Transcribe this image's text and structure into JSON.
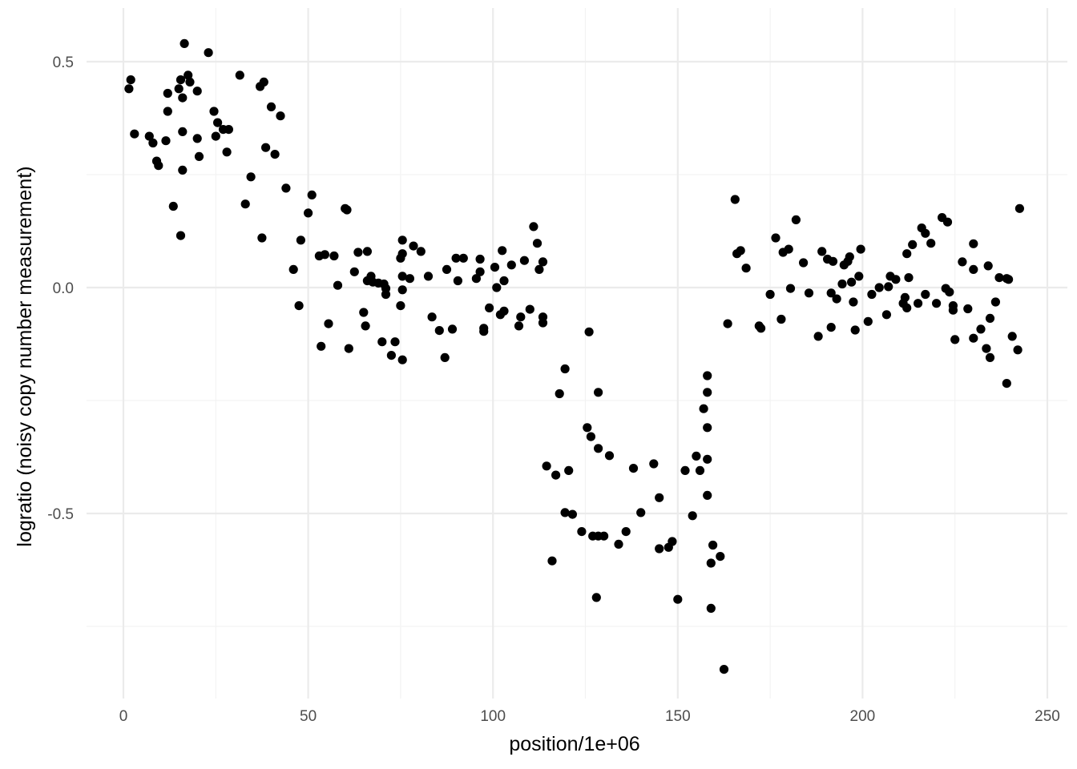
{
  "chart_data": {
    "type": "scatter",
    "title": "",
    "xlabel": "position/1e+06",
    "ylabel": "logratio (noisy copy number measurement)",
    "xlim": [
      -10,
      255
    ],
    "ylim": [
      -0.91,
      0.61
    ],
    "x_ticks": [
      0,
      50,
      100,
      150,
      200,
      250
    ],
    "x_tick_labels": [
      "0",
      "50",
      "100",
      "150",
      "200",
      "250"
    ],
    "y_ticks": [
      0.5,
      0.0,
      -0.5
    ],
    "y_tick_labels": [
      "0.5",
      "0.0",
      "-0.5"
    ],
    "grid": true,
    "legend": "none",
    "point_color": "#000000",
    "points": [
      [
        1.5,
        0.44
      ],
      [
        2.0,
        0.46
      ],
      [
        3.0,
        0.34
      ],
      [
        7.0,
        0.335
      ],
      [
        8.0,
        0.32
      ],
      [
        9.0,
        0.28
      ],
      [
        9.5,
        0.27
      ],
      [
        11.5,
        0.325
      ],
      [
        12.0,
        0.39
      ],
      [
        12.0,
        0.43
      ],
      [
        13.5,
        0.18
      ],
      [
        15.0,
        0.44
      ],
      [
        15.5,
        0.115
      ],
      [
        15.5,
        0.46
      ],
      [
        16.0,
        0.42
      ],
      [
        16.0,
        0.345
      ],
      [
        16.0,
        0.26
      ],
      [
        16.5,
        0.54
      ],
      [
        17.5,
        0.47
      ],
      [
        18.0,
        0.455
      ],
      [
        20.0,
        0.33
      ],
      [
        20.0,
        0.435
      ],
      [
        20.5,
        0.29
      ],
      [
        23.0,
        0.52
      ],
      [
        24.5,
        0.39
      ],
      [
        25.0,
        0.335
      ],
      [
        25.5,
        0.365
      ],
      [
        27.0,
        0.35
      ],
      [
        28.0,
        0.3
      ],
      [
        28.5,
        0.35
      ],
      [
        31.5,
        0.47
      ],
      [
        33.0,
        0.185
      ],
      [
        34.5,
        0.245
      ],
      [
        37.0,
        0.445
      ],
      [
        37.5,
        0.11
      ],
      [
        38.0,
        0.455
      ],
      [
        38.5,
        0.31
      ],
      [
        40.0,
        0.4
      ],
      [
        41.0,
        0.295
      ],
      [
        42.5,
        0.38
      ],
      [
        44.0,
        0.22
      ],
      [
        46.0,
        0.04
      ],
      [
        47.5,
        -0.04
      ],
      [
        48.0,
        0.105
      ],
      [
        50.0,
        0.165
      ],
      [
        51.0,
        0.205
      ],
      [
        53.0,
        0.07
      ],
      [
        53.5,
        -0.13
      ],
      [
        54.5,
        0.073
      ],
      [
        55.5,
        -0.08
      ],
      [
        57.0,
        0.07
      ],
      [
        58.0,
        0.005
      ],
      [
        60.0,
        0.175
      ],
      [
        60.5,
        0.172
      ],
      [
        61.0,
        -0.135
      ],
      [
        62.5,
        0.035
      ],
      [
        63.5,
        0.078
      ],
      [
        65.0,
        -0.055
      ],
      [
        65.5,
        -0.085
      ],
      [
        66.0,
        0.015
      ],
      [
        66.0,
        0.08
      ],
      [
        67.0,
        0.025
      ],
      [
        67.5,
        0.012
      ],
      [
        69.0,
        0.01
      ],
      [
        70.0,
        -0.12
      ],
      [
        70.5,
        0.008
      ],
      [
        71.0,
        -0.015
      ],
      [
        71.0,
        -0.002
      ],
      [
        72.5,
        -0.15
      ],
      [
        73.5,
        -0.12
      ],
      [
        75.0,
        -0.04
      ],
      [
        75.0,
        0.065
      ],
      [
        75.5,
        0.105
      ],
      [
        75.5,
        0.075
      ],
      [
        75.5,
        0.025
      ],
      [
        75.5,
        -0.005
      ],
      [
        75.5,
        -0.16
      ],
      [
        77.5,
        0.02
      ],
      [
        78.5,
        0.092
      ],
      [
        80.5,
        0.08
      ],
      [
        82.5,
        0.025
      ],
      [
        83.5,
        -0.065
      ],
      [
        85.5,
        -0.095
      ],
      [
        87.0,
        -0.155
      ],
      [
        87.5,
        0.04
      ],
      [
        89.0,
        -0.092
      ],
      [
        90.0,
        0.065
      ],
      [
        90.5,
        0.015
      ],
      [
        92.0,
        0.065
      ],
      [
        95.5,
        0.02
      ],
      [
        96.5,
        0.063
      ],
      [
        96.5,
        0.035
      ],
      [
        97.5,
        -0.09
      ],
      [
        97.5,
        -0.097
      ],
      [
        99.0,
        -0.045
      ],
      [
        100.5,
        0.045
      ],
      [
        101.0,
        0.0
      ],
      [
        102.0,
        -0.06
      ],
      [
        102.5,
        0.082
      ],
      [
        103.0,
        0.015
      ],
      [
        103.0,
        -0.052
      ],
      [
        105.0,
        0.05
      ],
      [
        107.0,
        -0.085
      ],
      [
        107.5,
        -0.065
      ],
      [
        108.5,
        0.06
      ],
      [
        110.0,
        -0.048
      ],
      [
        111.0,
        0.135
      ],
      [
        112.0,
        0.098
      ],
      [
        112.5,
        0.04
      ],
      [
        113.5,
        0.057
      ],
      [
        113.5,
        -0.065
      ],
      [
        113.5,
        -0.078
      ],
      [
        114.5,
        -0.395
      ],
      [
        116.0,
        -0.605
      ],
      [
        117.0,
        -0.415
      ],
      [
        118.0,
        -0.235
      ],
      [
        119.5,
        -0.18
      ],
      [
        119.5,
        -0.498
      ],
      [
        120.5,
        -0.405
      ],
      [
        121.5,
        -0.502
      ],
      [
        124.0,
        -0.54
      ],
      [
        125.5,
        -0.31
      ],
      [
        126.0,
        -0.098
      ],
      [
        126.5,
        -0.33
      ],
      [
        127.0,
        -0.55
      ],
      [
        128.0,
        -0.686
      ],
      [
        128.5,
        -0.55
      ],
      [
        128.5,
        -0.232
      ],
      [
        128.5,
        -0.356
      ],
      [
        130.0,
        -0.55
      ],
      [
        131.5,
        -0.372
      ],
      [
        134.0,
        -0.568
      ],
      [
        136.0,
        -0.54
      ],
      [
        138.0,
        -0.4
      ],
      [
        140.0,
        -0.498
      ],
      [
        143.5,
        -0.39
      ],
      [
        145.0,
        -0.578
      ],
      [
        145.0,
        -0.465
      ],
      [
        147.5,
        -0.575
      ],
      [
        148.5,
        -0.562
      ],
      [
        150.0,
        -0.69
      ],
      [
        152.0,
        -0.405
      ],
      [
        154.0,
        -0.505
      ],
      [
        155.0,
        -0.373
      ],
      [
        156.0,
        -0.405
      ],
      [
        157.0,
        -0.268
      ],
      [
        158.0,
        -0.38
      ],
      [
        158.0,
        -0.46
      ],
      [
        158.0,
        -0.31
      ],
      [
        158.0,
        -0.232
      ],
      [
        158.0,
        -0.195
      ],
      [
        159.0,
        -0.61
      ],
      [
        159.5,
        -0.57
      ],
      [
        159.0,
        -0.71
      ],
      [
        161.5,
        -0.595
      ],
      [
        162.5,
        -0.845
      ],
      [
        163.5,
        -0.08
      ],
      [
        165.5,
        0.195
      ],
      [
        166.0,
        0.075
      ],
      [
        167.0,
        0.082
      ],
      [
        168.5,
        0.043
      ],
      [
        172.0,
        -0.085
      ],
      [
        172.5,
        -0.09
      ],
      [
        175.0,
        -0.015
      ],
      [
        176.5,
        0.11
      ],
      [
        178.0,
        -0.07
      ],
      [
        178.5,
        0.078
      ],
      [
        180.0,
        0.085
      ],
      [
        180.5,
        -0.002
      ],
      [
        182.0,
        0.15
      ],
      [
        184.0,
        0.055
      ],
      [
        185.5,
        -0.012
      ],
      [
        188.0,
        -0.108
      ],
      [
        189.0,
        0.08
      ],
      [
        190.5,
        0.063
      ],
      [
        191.5,
        -0.088
      ],
      [
        191.5,
        -0.012
      ],
      [
        192.0,
        0.058
      ],
      [
        193.0,
        -0.025
      ],
      [
        194.5,
        0.008
      ],
      [
        195.0,
        0.05
      ],
      [
        196.0,
        0.058
      ],
      [
        196.5,
        0.068
      ],
      [
        197.0,
        0.012
      ],
      [
        197.5,
        -0.032
      ],
      [
        198.0,
        -0.094
      ],
      [
        199.0,
        0.025
      ],
      [
        199.5,
        0.085
      ],
      [
        201.5,
        -0.075
      ],
      [
        202.5,
        -0.015
      ],
      [
        204.5,
        0.0
      ],
      [
        206.5,
        -0.06
      ],
      [
        207.0,
        0.002
      ],
      [
        207.5,
        0.025
      ],
      [
        209.0,
        0.018
      ],
      [
        211.0,
        -0.035
      ],
      [
        211.5,
        -0.022
      ],
      [
        212.0,
        -0.045
      ],
      [
        212.0,
        0.075
      ],
      [
        212.5,
        0.022
      ],
      [
        213.5,
        0.095
      ],
      [
        215.0,
        -0.035
      ],
      [
        216.0,
        0.132
      ],
      [
        217.0,
        0.12
      ],
      [
        217.0,
        -0.015
      ],
      [
        218.5,
        0.098
      ],
      [
        220.0,
        -0.035
      ],
      [
        221.5,
        0.155
      ],
      [
        222.5,
        -0.002
      ],
      [
        223.0,
        0.145
      ],
      [
        223.5,
        -0.01
      ],
      [
        224.5,
        -0.04
      ],
      [
        224.5,
        -0.05
      ],
      [
        225.0,
        -0.115
      ],
      [
        227.0,
        0.057
      ],
      [
        228.5,
        -0.047
      ],
      [
        230.0,
        0.04
      ],
      [
        230.0,
        -0.112
      ],
      [
        230.0,
        0.097
      ],
      [
        232.0,
        -0.092
      ],
      [
        233.5,
        -0.135
      ],
      [
        234.0,
        0.048
      ],
      [
        234.5,
        -0.068
      ],
      [
        234.5,
        -0.155
      ],
      [
        236.0,
        -0.032
      ],
      [
        237.0,
        0.022
      ],
      [
        239.0,
        -0.212
      ],
      [
        239.0,
        0.02
      ],
      [
        239.5,
        0.018
      ],
      [
        240.5,
        -0.108
      ],
      [
        242.0,
        -0.138
      ],
      [
        242.5,
        0.175
      ]
    ]
  }
}
